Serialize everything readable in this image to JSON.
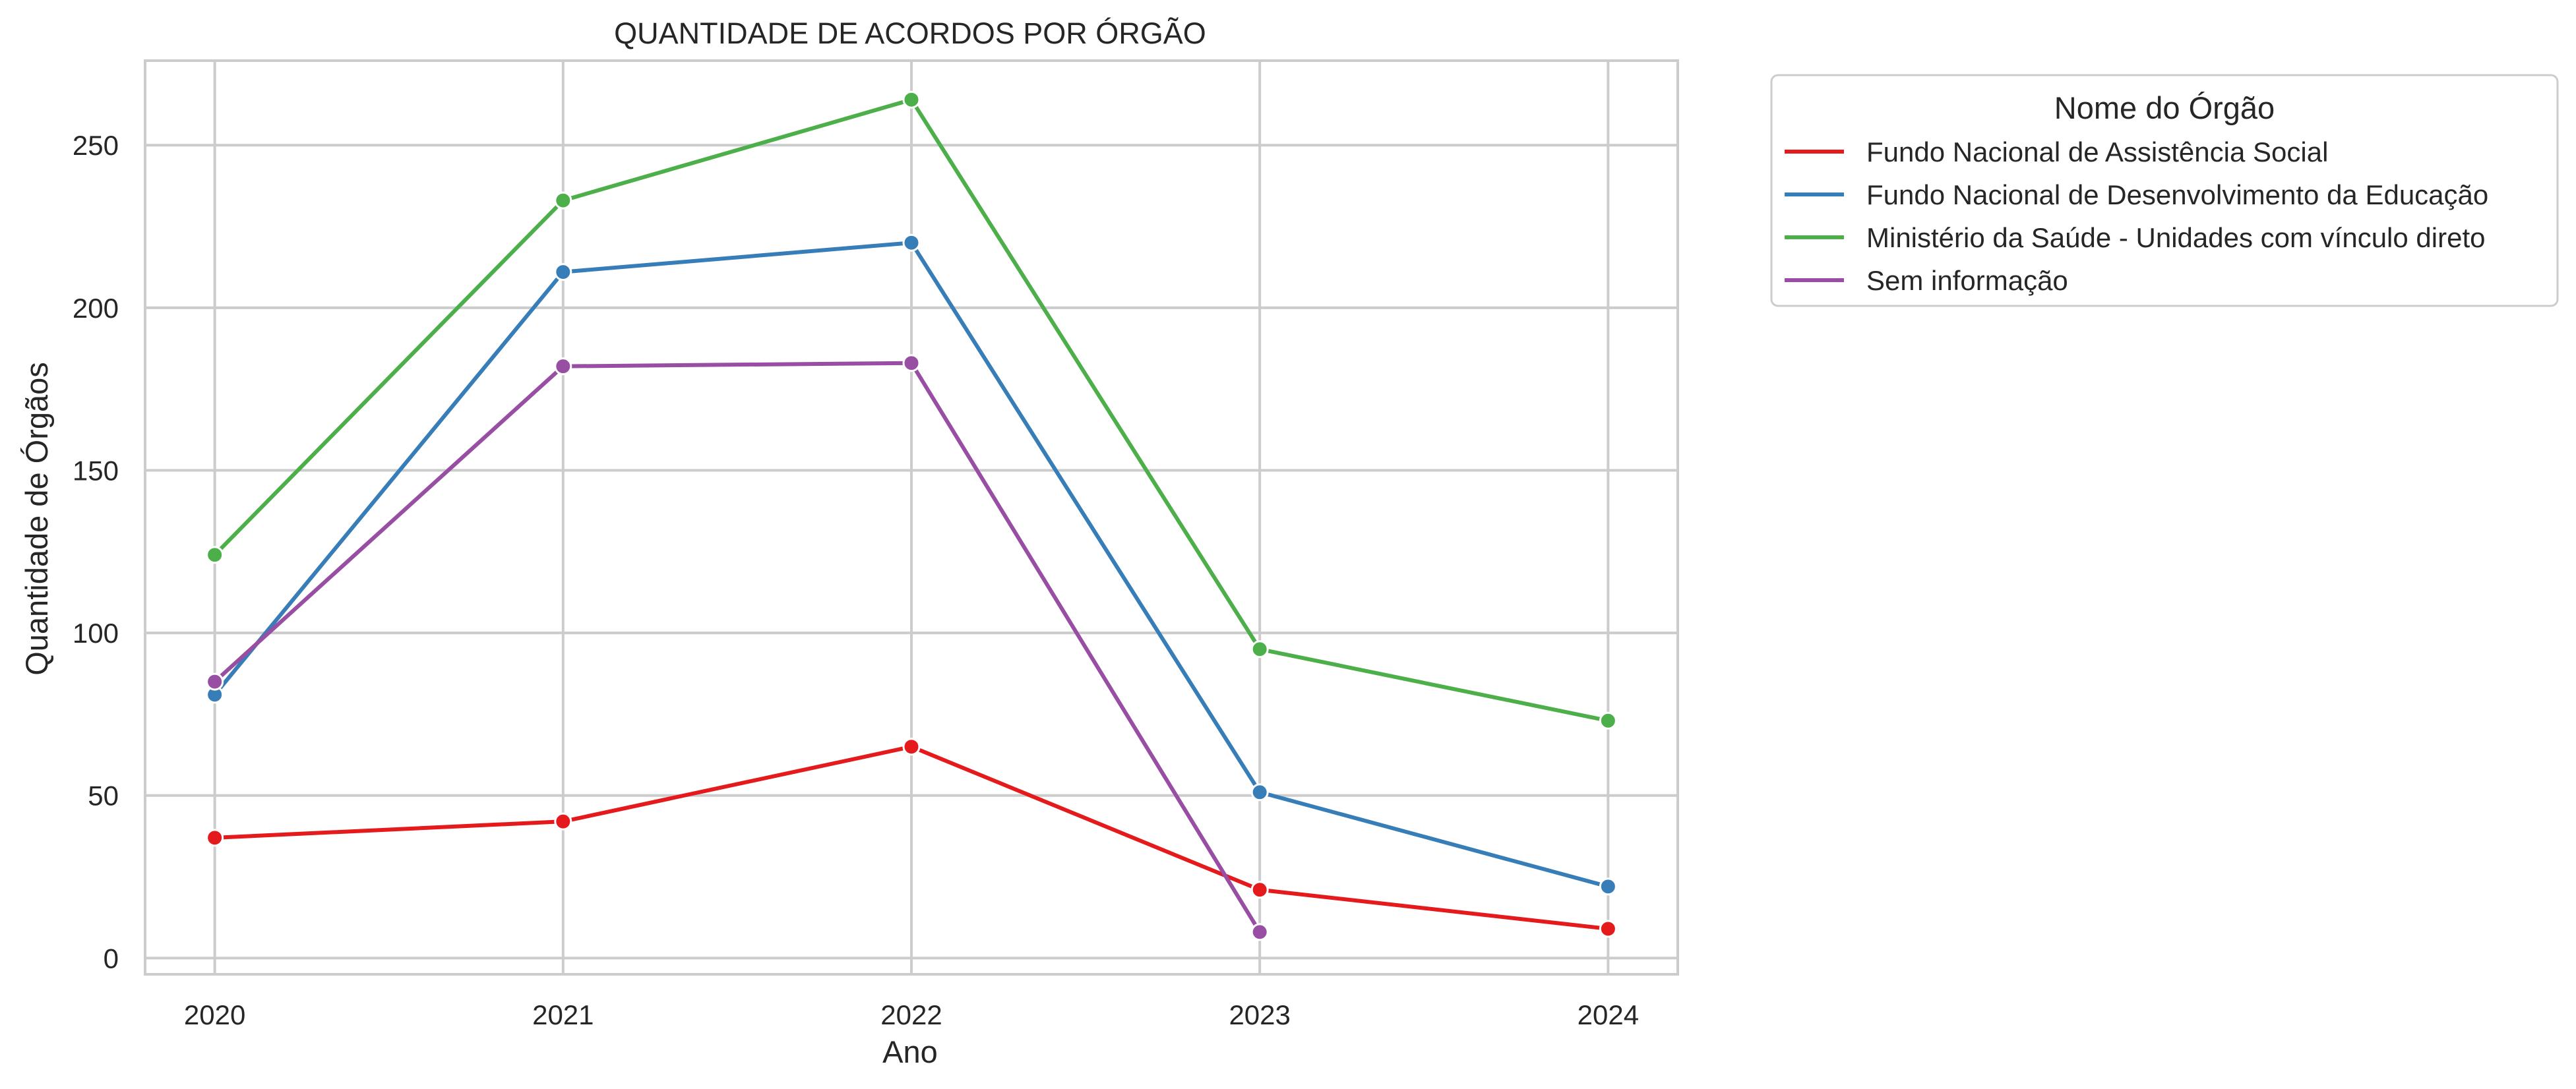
{
  "chart_data": {
    "type": "line",
    "title": "QUANTIDADE DE ACORDOS POR ÓRGÃO",
    "xlabel": "Ano",
    "ylabel": "Quantidade de Órgãos",
    "x": [
      2020,
      2021,
      2022,
      2023,
      2024
    ],
    "x_tick_labels": [
      "2020",
      "2021",
      "2022",
      "2023",
      "2024"
    ],
    "xlim": [
      2019.8,
      2024.2
    ],
    "ylim": [
      -5,
      276
    ],
    "y_ticks": [
      0,
      50,
      100,
      150,
      200,
      250
    ],
    "y_tick_labels": [
      "0",
      "50",
      "100",
      "150",
      "200",
      "250"
    ],
    "grid": true,
    "legend": {
      "title": "Nome do Órgão",
      "placement": "outside-top-right"
    },
    "series": [
      {
        "name": "Fundo Nacional de Assistência Social",
        "color": "#e41a1c",
        "x": [
          2020,
          2021,
          2022,
          2023,
          2024
        ],
        "values": [
          37,
          42,
          65,
          21,
          9
        ]
      },
      {
        "name": "Fundo Nacional de Desenvolvimento da Educação",
        "color": "#377eb8",
        "x": [
          2020,
          2021,
          2022,
          2023,
          2024
        ],
        "values": [
          81,
          211,
          220,
          51,
          22
        ]
      },
      {
        "name": "Ministério da Saúde - Unidades com vínculo direto",
        "color": "#4daf4a",
        "x": [
          2020,
          2021,
          2022,
          2023,
          2024
        ],
        "values": [
          124,
          233,
          264,
          95,
          73
        ]
      },
      {
        "name": "Sem informação",
        "color": "#984ea3",
        "x": [
          2020,
          2021,
          2022,
          2023
        ],
        "values": [
          85,
          182,
          183,
          8
        ]
      }
    ]
  },
  "colors": {
    "grid": "#cccccc",
    "axes_frame": "#cccccc",
    "text": "#262626",
    "background": "#ffffff"
  }
}
